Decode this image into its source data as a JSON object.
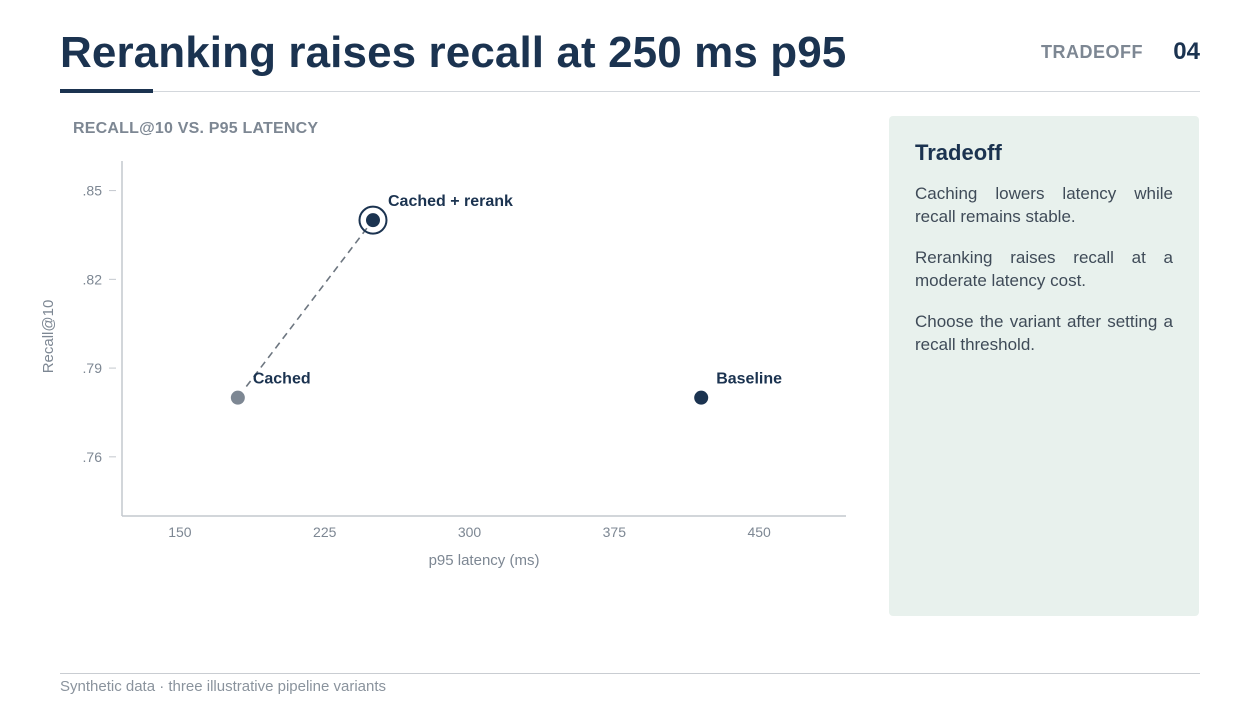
{
  "slide": {
    "title": "Reranking raises recall at 250 ms p95",
    "section_label": "TRADEOFF",
    "page_number": "04",
    "footer": "Synthetic data · three illustrative pipeline variants"
  },
  "panel": {
    "heading": "Tradeoff",
    "paragraphs": [
      "Caching lowers latency while recall remains stable.",
      "Reranking raises recall at a moderate latency cost.",
      "Choose the variant after setting a recall threshold."
    ]
  },
  "colors": {
    "navy": "#1b3350",
    "gray_point": "#7d8793",
    "panel_bg": "#e8f1ed"
  },
  "chart_data": {
    "type": "scatter",
    "title": "RECALL@10 VS. P95 LATENCY",
    "xlabel": "p95 latency (ms)",
    "ylabel": "Recall@10",
    "xlim": [
      120,
      495
    ],
    "ylim": [
      0.74,
      0.86
    ],
    "x_ticks": [
      150,
      225,
      300,
      375,
      450
    ],
    "x_tick_labels": [
      "150",
      "225",
      "300",
      "375",
      "450"
    ],
    "y_ticks": [
      0.76,
      0.79,
      0.82,
      0.85
    ],
    "y_tick_labels": [
      ".76",
      ".79",
      ".82",
      ".85"
    ],
    "grid": false,
    "points": [
      {
        "label": "Cached",
        "x": 180,
        "y": 0.78,
        "color": "#7d8793",
        "highlight": false
      },
      {
        "label": "Cached + rerank",
        "x": 250,
        "y": 0.84,
        "color": "#1b3350",
        "highlight": true
      },
      {
        "label": "Baseline",
        "x": 420,
        "y": 0.78,
        "color": "#1b3350",
        "highlight": false
      }
    ],
    "connector": {
      "from": "Cached",
      "to": "Cached + rerank",
      "style": "dashed"
    }
  }
}
